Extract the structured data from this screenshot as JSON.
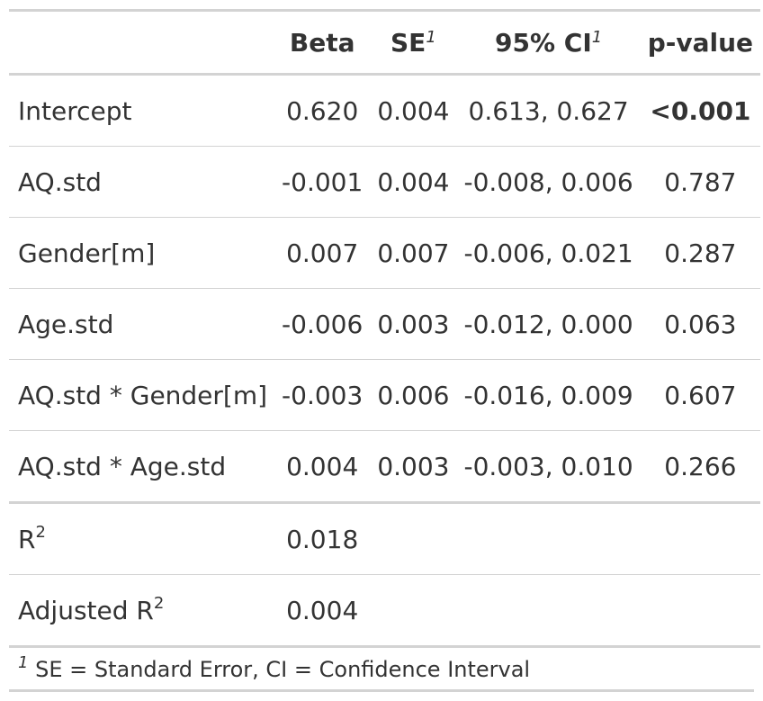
{
  "header": {
    "col_label": "",
    "col_beta": "Beta",
    "col_se": "SE",
    "col_se_note": "1",
    "col_ci": "95% CI",
    "col_ci_note": "1",
    "col_p": "p-value"
  },
  "rows": [
    {
      "label": "Intercept",
      "beta": "0.620",
      "se": "0.004",
      "ci": "0.613, 0.627",
      "p": "<0.001"
    },
    {
      "label": "AQ.std",
      "beta": "-0.001",
      "se": "0.004",
      "ci": "-0.008, 0.006",
      "p": "0.787"
    },
    {
      "label": "Gender[m]",
      "beta": "0.007",
      "se": "0.007",
      "ci": "-0.006, 0.021",
      "p": "0.287"
    },
    {
      "label": "Age.std",
      "beta": "-0.006",
      "se": "0.003",
      "ci": "-0.012, 0.000",
      "p": "0.063"
    },
    {
      "label": "AQ.std * Gender[m]",
      "beta": "-0.003",
      "se": "0.006",
      "ci": "-0.016, 0.009",
      "p": "0.607"
    },
    {
      "label": "AQ.std * Age.std",
      "beta": "0.004",
      "se": "0.003",
      "ci": "-0.003, 0.010",
      "p": "0.266"
    }
  ],
  "stats": [
    {
      "label": "R",
      "sup": "2",
      "value": "0.018"
    },
    {
      "label": "Adjusted R",
      "sup": "2",
      "value": "0.004"
    }
  ],
  "footnote": {
    "marker": "1",
    "text": " SE = Standard Error, CI = Confidence Interval"
  }
}
